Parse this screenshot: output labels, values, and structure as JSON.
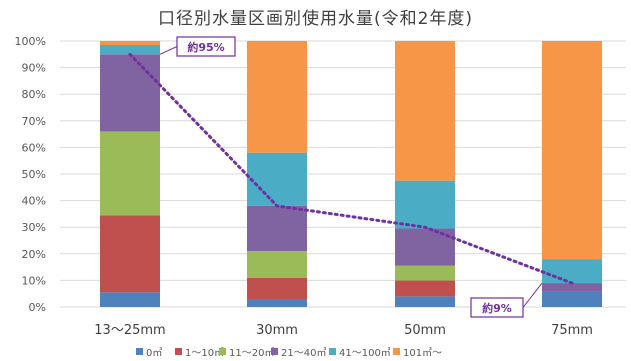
{
  "chart_data": {
    "type": "bar",
    "stacked": true,
    "percent_axis": true,
    "title": "口径別水量区画別使用水量(令和2年度)",
    "categories": [
      "13～25mm",
      "30mm",
      "50mm",
      "75mm"
    ],
    "yticks": [
      "0%",
      "10%",
      "20%",
      "30%",
      "40%",
      "50%",
      "60%",
      "70%",
      "80%",
      "90%",
      "100%"
    ],
    "ylim": [
      0,
      100
    ],
    "grid": true,
    "legend_position": "bottom",
    "series": [
      {
        "name": "0㎥",
        "color": "#4f81bd",
        "values": [
          5.5,
          3,
          4,
          6
        ]
      },
      {
        "name": "1～10㎥",
        "color": "#c0504d",
        "values": [
          29,
          8,
          6,
          0
        ]
      },
      {
        "name": "11～20㎥",
        "color": "#9bbb59",
        "values": [
          31.5,
          10,
          5.5,
          0
        ]
      },
      {
        "name": "21～40㎥",
        "color": "#8064a2",
        "values": [
          29,
          17,
          14,
          3
        ]
      },
      {
        "name": "41～100㎥",
        "color": "#4bacc6",
        "values": [
          3.5,
          20,
          18,
          9
        ]
      },
      {
        "name": "101㎥～",
        "color": "#f79646",
        "values": [
          1.5,
          42,
          52.5,
          82
        ]
      }
    ],
    "trend_line": {
      "values": [
        95,
        38,
        30,
        9
      ],
      "color": "#7030a0"
    },
    "annotations": [
      {
        "text": "約95%",
        "category_index": 0,
        "value": 95
      },
      {
        "text": "約9%",
        "category_index": 3,
        "value": 9
      }
    ]
  }
}
